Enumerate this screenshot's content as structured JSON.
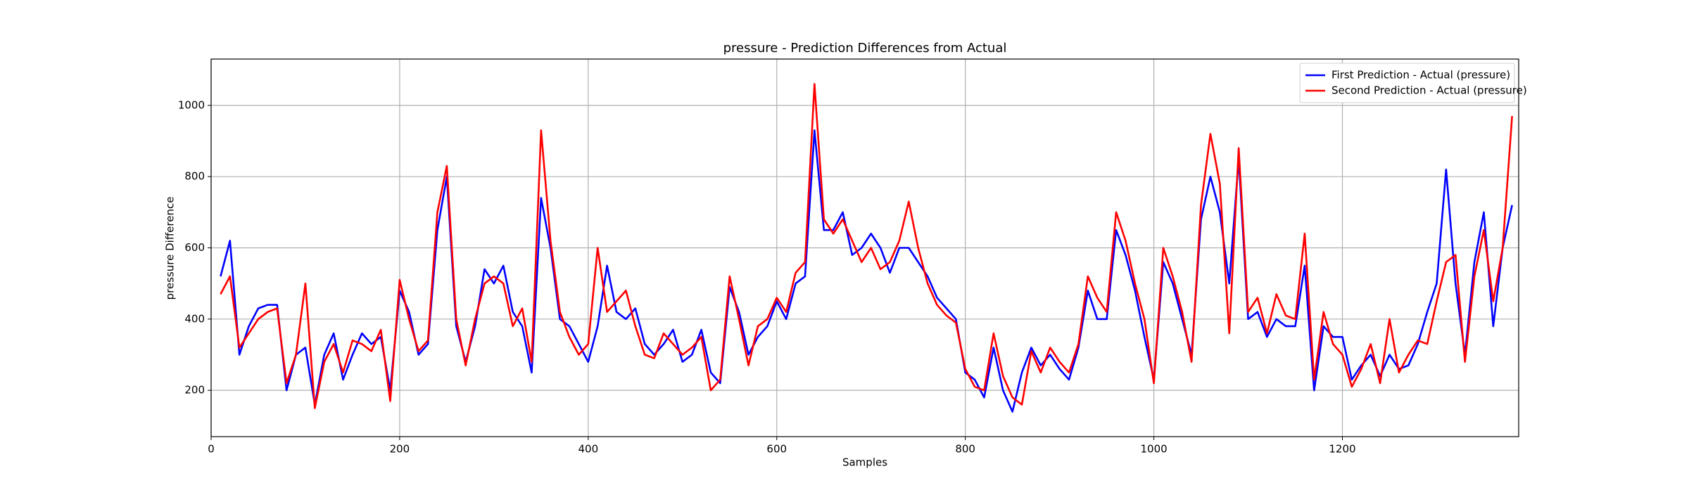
{
  "chart_data": {
    "type": "line",
    "title": "pressure - Prediction Differences from Actual",
    "xlabel": "Samples",
    "ylabel": "pressure Difference",
    "x": [
      10,
      20,
      30,
      40,
      50,
      60,
      70,
      80,
      90,
      100,
      110,
      120,
      130,
      140,
      150,
      160,
      170,
      180,
      190,
      200,
      210,
      220,
      230,
      240,
      250,
      260,
      270,
      280,
      290,
      300,
      310,
      320,
      330,
      340,
      350,
      360,
      370,
      380,
      390,
      400,
      410,
      420,
      430,
      440,
      450,
      460,
      470,
      480,
      490,
      500,
      510,
      520,
      530,
      540,
      550,
      560,
      570,
      580,
      590,
      600,
      610,
      620,
      630,
      640,
      650,
      660,
      670,
      680,
      690,
      700,
      710,
      720,
      730,
      740,
      750,
      760,
      770,
      780,
      790,
      800,
      810,
      820,
      830,
      840,
      850,
      860,
      870,
      880,
      890,
      900,
      910,
      920,
      930,
      940,
      950,
      960,
      970,
      980,
      990,
      1000,
      1010,
      1020,
      1030,
      1040,
      1050,
      1060,
      1070,
      1080,
      1090,
      1100,
      1110,
      1120,
      1130,
      1140,
      1150,
      1160,
      1170,
      1180,
      1190,
      1200,
      1210,
      1220,
      1230,
      1240,
      1250,
      1260,
      1270,
      1280,
      1290,
      1300,
      1310,
      1320,
      1330,
      1340,
      1350,
      1360,
      1370,
      1380
    ],
    "series": [
      {
        "name": "First Prediction - Actual (pressure)",
        "color": "#0000ff",
        "values": [
          520,
          620,
          300,
          380,
          430,
          440,
          440,
          200,
          300,
          320,
          160,
          300,
          360,
          230,
          300,
          360,
          330,
          350,
          200,
          480,
          420,
          300,
          330,
          650,
          800,
          380,
          280,
          380,
          540,
          500,
          550,
          420,
          380,
          250,
          740,
          600,
          400,
          380,
          330,
          280,
          380,
          550,
          420,
          400,
          430,
          330,
          300,
          330,
          370,
          280,
          300,
          370,
          250,
          220,
          490,
          420,
          300,
          350,
          380,
          450,
          400,
          500,
          520,
          930,
          650,
          650,
          700,
          580,
          600,
          640,
          600,
          530,
          600,
          600,
          560,
          520,
          460,
          430,
          400,
          250,
          230,
          180,
          320,
          200,
          140,
          250,
          320,
          270,
          300,
          260,
          230,
          320,
          480,
          400,
          400,
          650,
          580,
          480,
          350,
          230,
          560,
          500,
          400,
          300,
          680,
          800,
          700,
          500,
          850,
          400,
          420,
          350,
          400,
          380,
          380,
          550,
          200,
          380,
          350,
          350,
          230,
          270,
          300,
          240,
          300,
          260,
          270,
          330,
          420,
          500,
          820,
          500,
          300,
          560,
          700,
          380,
          600,
          720
        ]
      },
      {
        "name": "Second Prediction - Actual (pressure)",
        "color": "#ff0000",
        "values": [
          470,
          520,
          320,
          360,
          400,
          420,
          430,
          220,
          300,
          500,
          150,
          280,
          330,
          250,
          340,
          330,
          310,
          370,
          170,
          510,
          400,
          310,
          340,
          700,
          830,
          400,
          270,
          400,
          500,
          520,
          500,
          380,
          430,
          280,
          930,
          620,
          420,
          350,
          300,
          330,
          600,
          420,
          450,
          480,
          380,
          300,
          290,
          360,
          330,
          300,
          320,
          350,
          200,
          230,
          520,
          400,
          270,
          380,
          400,
          460,
          420,
          530,
          560,
          1060,
          680,
          640,
          680,
          620,
          560,
          600,
          540,
          560,
          620,
          730,
          600,
          500,
          440,
          410,
          390,
          260,
          210,
          200,
          360,
          240,
          180,
          160,
          310,
          250,
          320,
          280,
          250,
          330,
          520,
          460,
          420,
          700,
          620,
          500,
          400,
          220,
          600,
          520,
          420,
          280,
          720,
          920,
          780,
          360,
          880,
          420,
          460,
          360,
          470,
          410,
          400,
          640,
          230,
          420,
          330,
          300,
          210,
          260,
          330,
          220,
          400,
          250,
          300,
          340,
          330,
          450,
          560,
          580,
          280,
          520,
          650,
          450,
          600,
          970
        ]
      }
    ],
    "xlim": [
      0,
      1387
    ],
    "ylim": [
      70,
      1130
    ],
    "xticks": [
      0,
      200,
      400,
      600,
      800,
      1000,
      1200
    ],
    "yticks": [
      200,
      400,
      600,
      800,
      1000
    ],
    "grid": true,
    "legend": "upper right"
  }
}
